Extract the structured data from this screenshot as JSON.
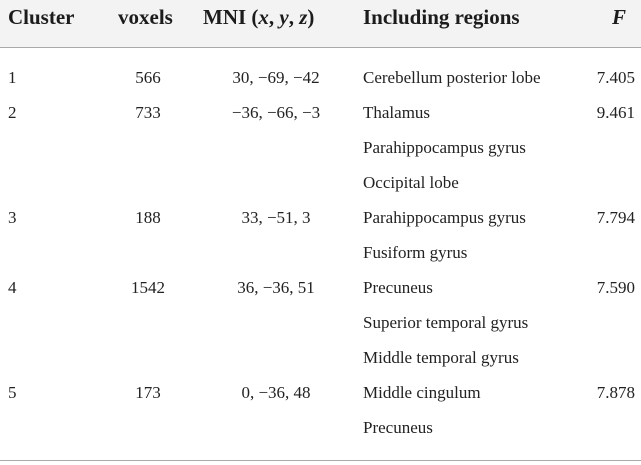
{
  "table": {
    "headers": {
      "cluster": "Cluster",
      "voxels": "voxels",
      "mni": "MNI (x, y, z)",
      "regions": "Including regions",
      "f": "F"
    },
    "rows": [
      {
        "cluster": "1",
        "voxels": "566",
        "mni": "30, −69, −42",
        "regions": [
          "Cerebellum posterior lobe"
        ],
        "f": "7.405"
      },
      {
        "cluster": "2",
        "voxels": "733",
        "mni": "−36, −66, −3",
        "regions": [
          "Thalamus",
          "Parahippocampus gyrus",
          "Occipital lobe"
        ],
        "f": "9.461"
      },
      {
        "cluster": "3",
        "voxels": "188",
        "mni": "33, −51, 3",
        "regions": [
          "Parahippocampus gyrus",
          "Fusiform gyrus"
        ],
        "f": "7.794"
      },
      {
        "cluster": "4",
        "voxels": "1542",
        "mni": "36, −36, 51",
        "regions": [
          "Precuneus",
          "Superior temporal gyrus",
          "Middle temporal gyrus"
        ],
        "f": "7.590"
      },
      {
        "cluster": "5",
        "voxels": "173",
        "mni": "0, −36, 48",
        "regions": [
          "Middle cingulum",
          "Precuneus"
        ],
        "f": "7.878"
      }
    ]
  }
}
